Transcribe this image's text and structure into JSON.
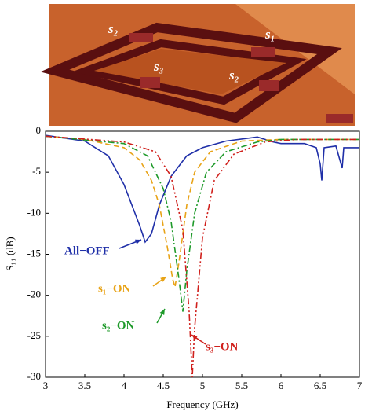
{
  "figure_labels": [
    "s₂",
    "s₁",
    "s₃",
    "s₂"
  ],
  "chart_data": {
    "type": "line",
    "xlabel": "Frequency (GHz)",
    "ylabel": "S₁₁ (dB)",
    "xlim": [
      3,
      7
    ],
    "ylim": [
      -30,
      0
    ],
    "xticks": [
      3,
      3.5,
      4,
      4.5,
      5,
      5.5,
      6,
      6.5,
      7
    ],
    "yticks": [
      0,
      -5,
      -10,
      -15,
      -20,
      -25,
      -30
    ],
    "series": [
      {
        "name": "All−OFF",
        "color": "#1f2fa8",
        "dash": "solid",
        "x": [
          3,
          3.5,
          3.8,
          4.0,
          4.1,
          4.2,
          4.27,
          4.35,
          4.45,
          4.6,
          4.8,
          5.0,
          5.3,
          5.7,
          5.9,
          6.0,
          6.3,
          6.45,
          6.5,
          6.52,
          6.55,
          6.7,
          6.78,
          6.8,
          6.9,
          7
        ],
        "values": [
          -0.5,
          -1.2,
          -3,
          -6.5,
          -9,
          -11.5,
          -13.5,
          -12.5,
          -9,
          -5.5,
          -3,
          -2,
          -1.2,
          -0.7,
          -1.3,
          -1.5,
          -1.5,
          -2,
          -4,
          -6,
          -2,
          -1.8,
          -4.5,
          -2,
          -2,
          -2
        ]
      },
      {
        "name": "s₁−ON",
        "color": "#e8a317",
        "dash": "dashed",
        "x": [
          3,
          3.5,
          4,
          4.2,
          4.35,
          4.45,
          4.55,
          4.62,
          4.65,
          4.7,
          4.8,
          4.9,
          5.1,
          5.5,
          6,
          7
        ],
        "values": [
          -0.6,
          -1,
          -2,
          -3.5,
          -6,
          -9,
          -14,
          -18,
          -19,
          -16,
          -9,
          -5,
          -2.5,
          -1.2,
          -1,
          -1
        ]
      },
      {
        "name": "s₂−ON",
        "color": "#1e9a2a",
        "dash": "dashdot",
        "x": [
          3,
          4,
          4.3,
          4.5,
          4.6,
          4.7,
          4.75,
          4.8,
          4.9,
          5.05,
          5.3,
          5.7,
          6,
          7
        ],
        "values": [
          -0.6,
          -1.5,
          -3,
          -7,
          -11,
          -18,
          -22,
          -17,
          -10,
          -5,
          -2.5,
          -1.3,
          -1,
          -1
        ]
      },
      {
        "name": "s₃−ON",
        "color": "#d0201c",
        "dash": "dashdotdot",
        "x": [
          3,
          4,
          4.4,
          4.6,
          4.75,
          4.83,
          4.87,
          4.9,
          5.0,
          5.15,
          5.4,
          5.8,
          6.2,
          7
        ],
        "values": [
          -0.6,
          -1.3,
          -2.5,
          -5.5,
          -12,
          -22,
          -30,
          -24,
          -13,
          -6,
          -2.8,
          -1.3,
          -1,
          -1
        ]
      }
    ]
  }
}
